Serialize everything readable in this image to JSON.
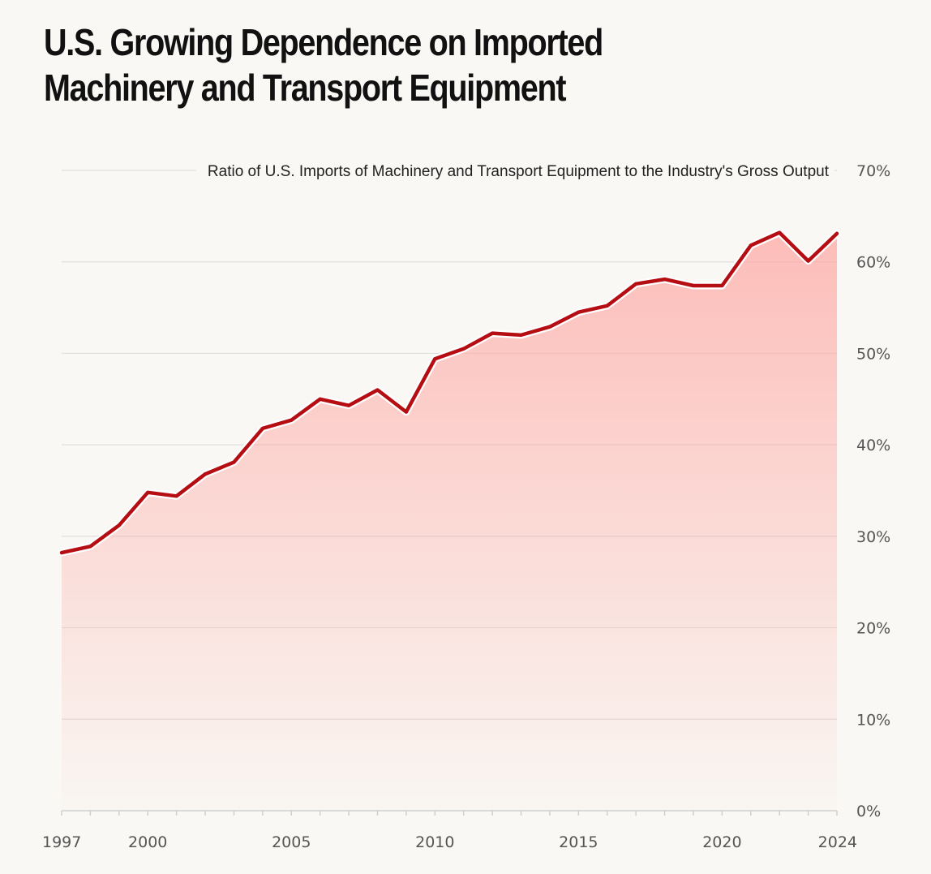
{
  "title_lines": [
    "U.S. Growing Dependence on Imported",
    "Machinery and Transport Equipment"
  ],
  "chart_data": {
    "type": "area",
    "title": "U.S. Growing Dependence on Imported Machinery and Transport Equipment",
    "series_label": "Ratio of U.S. Imports of Machinery and Transport Equipment to the Industry's Gross Output",
    "x": [
      1997,
      1998,
      1999,
      2000,
      2001,
      2002,
      2003,
      2004,
      2005,
      2006,
      2007,
      2008,
      2009,
      2010,
      2011,
      2012,
      2013,
      2014,
      2015,
      2016,
      2017,
      2018,
      2019,
      2020,
      2021,
      2022,
      2023,
      2024
    ],
    "values": [
      28.2,
      28.9,
      31.2,
      34.8,
      34.4,
      36.8,
      38.1,
      41.8,
      42.7,
      45.0,
      44.3,
      46.0,
      43.6,
      49.4,
      50.5,
      52.2,
      52.0,
      52.9,
      54.5,
      55.2,
      57.6,
      58.1,
      57.4,
      57.4,
      61.8,
      63.2,
      60.1,
      63.1
    ],
    "xlim": [
      1997,
      2024
    ],
    "ylim": [
      0,
      70
    ],
    "x_tick_labels": [
      "1997",
      "2000",
      "2005",
      "2010",
      "2015",
      "2020",
      "2024"
    ],
    "y_tick_labels": [
      "0%",
      "10%",
      "20%",
      "30%",
      "40%",
      "50%",
      "60%",
      "70%"
    ],
    "y_ticks": [
      0,
      10,
      20,
      30,
      40,
      50,
      60,
      70
    ],
    "x_tick_values": [
      1997,
      2000,
      2005,
      2010,
      2015,
      2020,
      2024
    ],
    "grid": true,
    "line_color": "#b50d12",
    "fill_color": "#ff9d99"
  }
}
